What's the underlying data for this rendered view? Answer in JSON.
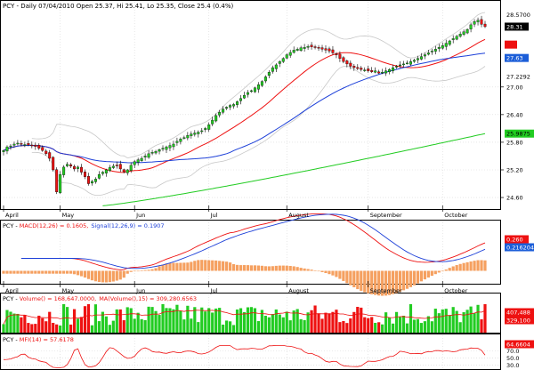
{
  "header": {
    "price_title": "PCY - Daily 07/04/2010 Open 25.37, Hi 25.41, Lo 25.35, Close 25.4 (0.4%)",
    "macd_title_prefix": "PCY - ",
    "macd_label": "MACD(12,26) = 0.1605,",
    "signal_label": "Signal(12,26,9) = 0.1907",
    "volume_title_prefix": "PCY - ",
    "volume_label": "Volume() = 168,647.0000,",
    "volume_ma_label": "MA(Volume(),15) = 309,280.6563",
    "mfi_title_prefix": "PCY - ",
    "mfi_label": "MFI(14) = 57.6178"
  },
  "x_axis": {
    "months": [
      "April",
      "May",
      "Jun",
      "Jul",
      "August",
      "September",
      "October"
    ]
  },
  "price_axis": {
    "ticks": [
      "27.00",
      "26.40",
      "25.80",
      "25.20",
      "24.60"
    ],
    "badges": [
      {
        "text": "28.5700",
        "bg": "#ffffff",
        "fg": "#000000"
      },
      {
        "text": "28.31",
        "bg": "#000000",
        "fg": "#ffffff"
      },
      {
        "text": "27.63",
        "bg": "#1c5ed8",
        "fg": "#ffffff"
      },
      {
        "text": "27.2292",
        "bg": "#ffffff",
        "fg": "#000000"
      },
      {
        "text": "25.9875",
        "bg": "#22cc22",
        "fg": "#000000"
      }
    ]
  },
  "macd_axis": {
    "badges": [
      {
        "text": "0.260",
        "bg": "#ee1111",
        "fg": "#ffffff"
      },
      {
        "text": "0.216204",
        "bg": "#1c5ed8",
        "fg": "#ffffff"
      }
    ]
  },
  "volume_axis": {
    "badges": [
      {
        "text": "407,488",
        "bg": "#ee1111",
        "fg": "#ffffff"
      },
      {
        "text": "329,100",
        "bg": "#ee1111",
        "fg": "#ffffff"
      }
    ]
  },
  "mfi_axis": {
    "ticks": [
      "70.0",
      "50.0",
      "30.0"
    ],
    "badges": [
      {
        "text": "64.6604",
        "bg": "#ee1111",
        "fg": "#ffffff"
      }
    ]
  },
  "colors": {
    "up": "#22cc22",
    "down": "#ee1111",
    "ma_fast": "#ee1111",
    "ma_mid": "#1c3fd8",
    "ma_slow": "#22cc22",
    "bands": "#c8c8c8",
    "histogram": "#f5a060",
    "grid": "#d8d8d8"
  },
  "chart_data": [
    {
      "type": "line",
      "panel": "price",
      "y_ticks": [
        27.0,
        26.4,
        25.8,
        25.2,
        24.6
      ],
      "ylim": [
        24.35,
        28.85
      ],
      "bar_count": 137,
      "month_starts": [
        0,
        16,
        37,
        58,
        80,
        103,
        124
      ],
      "close": [
        25.62,
        25.7,
        25.72,
        25.76,
        25.78,
        25.77,
        25.75,
        25.74,
        25.73,
        25.71,
        25.67,
        25.62,
        25.55,
        25.45,
        25.2,
        24.72,
        25.1,
        25.26,
        25.32,
        25.28,
        25.22,
        25.26,
        25.15,
        25.05,
        24.9,
        24.95,
        25.0,
        25.1,
        25.15,
        25.2,
        25.25,
        25.28,
        25.3,
        25.22,
        25.16,
        25.2,
        25.3,
        25.38,
        25.42,
        25.45,
        25.5,
        25.55,
        25.58,
        25.6,
        25.64,
        25.67,
        25.7,
        25.73,
        25.76,
        25.82,
        25.87,
        25.9,
        25.95,
        25.98,
        26.0,
        26.02,
        26.05,
        26.1,
        26.18,
        26.28,
        26.38,
        26.45,
        26.52,
        26.56,
        26.6,
        26.62,
        26.68,
        26.75,
        26.82,
        26.88,
        26.92,
        26.98,
        27.05,
        27.12,
        27.22,
        27.32,
        27.42,
        27.48,
        27.55,
        27.62,
        27.7,
        27.75,
        27.8,
        27.82,
        27.85,
        27.86,
        27.88,
        27.87,
        27.86,
        27.84,
        27.82,
        27.8,
        27.78,
        27.74,
        27.7,
        27.62,
        27.55,
        27.5,
        27.45,
        27.42,
        27.4,
        27.38,
        27.37,
        27.35,
        27.33,
        27.35,
        27.3,
        27.32,
        27.35,
        27.38,
        27.42,
        27.45,
        27.48,
        27.5,
        27.52,
        27.55,
        27.58,
        27.62,
        27.66,
        27.7,
        27.74,
        27.78,
        27.82,
        27.86,
        27.9,
        27.95,
        28.0,
        28.05,
        28.1,
        28.15,
        28.2,
        28.25,
        28.35,
        28.42,
        28.45,
        28.36,
        28.31
      ],
      "ma_fast_end": 27.92,
      "ma_mid_end": 27.63,
      "ma_slow_end": 25.9875,
      "upper_band_end": 28.57,
      "lower_band_end": 27.2292
    },
    {
      "type": "line",
      "panel": "macd",
      "series": [
        {
          "name": "MACD(12,26)",
          "last": 0.1605
        },
        {
          "name": "Signal(12,26,9)",
          "last": 0.1907
        }
      ]
    },
    {
      "type": "bar",
      "panel": "volume",
      "series": [
        {
          "name": "Volume()",
          "last": 168647
        },
        {
          "name": "MA(Volume(),15)",
          "last": 309280.6563
        }
      ]
    },
    {
      "type": "line",
      "panel": "mfi",
      "y_ticks": [
        70,
        50,
        30
      ],
      "ylim": [
        18,
        92
      ],
      "series": [
        {
          "name": "MFI(14)",
          "last": 57.6178
        }
      ]
    }
  ]
}
